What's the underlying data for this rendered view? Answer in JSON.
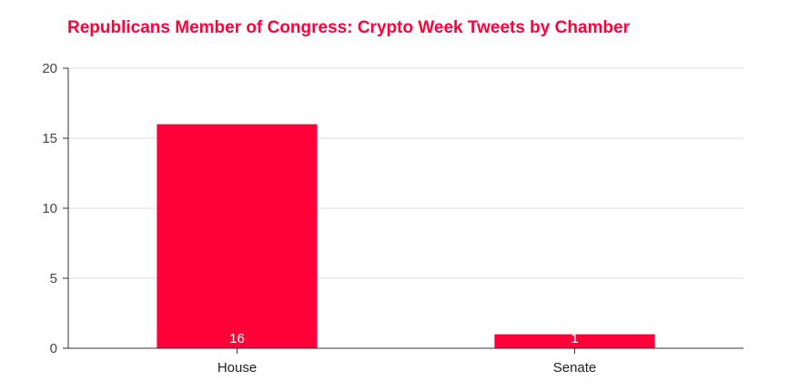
{
  "chart_data": {
    "type": "bar",
    "title": "Republicans Member of Congress: Crypto Week Tweets by Chamber",
    "xlabel": "",
    "ylabel": "",
    "categories": [
      "House",
      "Senate"
    ],
    "values": [
      16,
      1
    ],
    "data_labels": [
      "16",
      "1"
    ],
    "ylim": [
      0,
      20
    ],
    "yticks": [
      0,
      5,
      10,
      15,
      20
    ],
    "grid": true,
    "legend": "none",
    "bar_color": "#ff0039",
    "title_color": "#ff0039"
  }
}
